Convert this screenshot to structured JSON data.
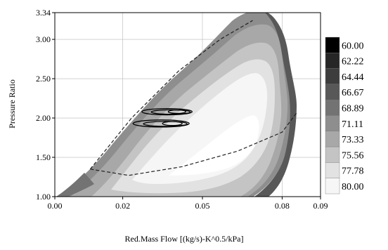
{
  "chart_data": {
    "type": "contour",
    "xlabel": "Red.Mass Flow [(kg/s)-K^0.5/kPa]",
    "ylabel": "Pressure Ratio",
    "xlim": [
      0.0,
      0.09
    ],
    "ylim": [
      1.0,
      3.34
    ],
    "x_ticks": [
      "0.00",
      "0.02",
      "0.05",
      "0.08",
      "0.09"
    ],
    "x_tick_values": [
      0.0,
      0.023,
      0.05,
      0.077,
      0.09
    ],
    "y_ticks": [
      "1.00",
      "1.50",
      "2.00",
      "2.50",
      "3.00",
      "3.34"
    ],
    "y_tick_values": [
      1.0,
      1.5,
      2.0,
      2.5,
      3.0,
      3.34
    ],
    "legend": {
      "placement": "right",
      "levels": [
        "60.00",
        "62.22",
        "64.44",
        "66.67",
        "68.89",
        "71.11",
        "73.33",
        "75.56",
        "77.78",
        "80.00"
      ],
      "colors": [
        "#000000",
        "#262626",
        "#3d3d3d",
        "#585858",
        "#737373",
        "#8e8e8e",
        "#a8a8a8",
        "#c4c4c4",
        "#e2e2e2",
        "#f6f6f6"
      ]
    },
    "surge_line": [
      [
        0.012,
        1.35
      ],
      [
        0.025,
        1.27
      ],
      [
        0.043,
        1.38
      ],
      [
        0.062,
        1.58
      ],
      [
        0.077,
        1.82
      ],
      [
        0.082,
        2.07
      ]
    ],
    "dashed_line": [
      [
        0.012,
        1.35
      ],
      [
        0.026,
        2.0
      ],
      [
        0.042,
        2.6
      ],
      [
        0.056,
        3.0
      ],
      [
        0.067,
        3.24
      ]
    ],
    "operating_loops": [
      {
        "center": [
          0.038,
          2.08
        ],
        "rx": 0.0085,
        "ry": 0.04
      },
      {
        "center": [
          0.036,
          1.93
        ],
        "rx": 0.0095,
        "ry": 0.045
      }
    ],
    "grid": true
  }
}
